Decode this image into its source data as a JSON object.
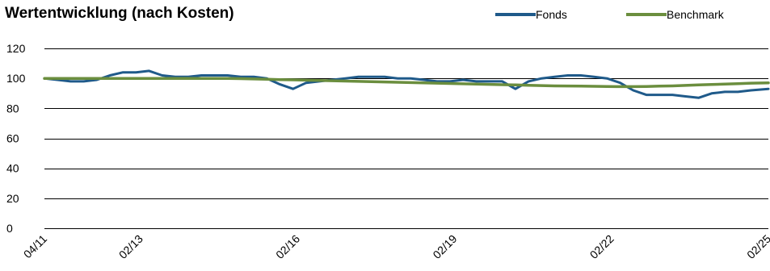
{
  "chart_data": {
    "type": "line",
    "title": "Wertentwicklung (nach Kosten)",
    "xlabel": "",
    "ylabel": "",
    "ylim": [
      0,
      120
    ],
    "yticks": [
      0,
      20,
      40,
      60,
      80,
      100,
      120
    ],
    "grid": "horizontal",
    "legend_position": "top-right",
    "x_tick_labels": [
      "04/11",
      "02/13",
      "02/16",
      "02/19",
      "02/22",
      "02/25"
    ],
    "x_tick_dates": [
      "2011-04",
      "2013-02",
      "2016-02",
      "2019-02",
      "2022-02",
      "2025-02"
    ],
    "x": [
      "2011-04",
      "2011-07",
      "2011-10",
      "2012-01",
      "2012-04",
      "2012-07",
      "2012-10",
      "2013-01",
      "2013-04",
      "2013-07",
      "2013-10",
      "2014-01",
      "2014-04",
      "2014-07",
      "2014-10",
      "2015-01",
      "2015-04",
      "2015-07",
      "2015-10",
      "2016-01",
      "2016-04",
      "2016-07",
      "2016-10",
      "2017-01",
      "2017-04",
      "2017-07",
      "2017-10",
      "2018-01",
      "2018-04",
      "2018-07",
      "2018-10",
      "2019-01",
      "2019-04",
      "2019-07",
      "2019-10",
      "2020-01",
      "2020-04",
      "2020-07",
      "2020-10",
      "2021-01",
      "2021-04",
      "2021-07",
      "2021-10",
      "2022-01",
      "2022-04",
      "2022-07",
      "2022-10",
      "2023-01",
      "2023-04",
      "2023-07",
      "2023-10",
      "2024-01",
      "2024-04",
      "2024-07",
      "2024-10",
      "2025-02"
    ],
    "series": [
      {
        "name": "Fonds",
        "color": "#1f5a8a",
        "values": [
          100,
          99,
          98,
          98,
          99,
          102,
          104,
          104,
          105,
          102,
          101,
          101,
          102,
          102,
          102,
          101,
          101,
          100,
          96,
          93,
          97,
          98,
          99,
          100,
          101,
          101,
          101,
          100,
          100,
          99,
          98,
          98,
          99,
          98,
          98,
          98,
          93,
          98,
          100,
          101,
          102,
          102,
          101,
          100,
          97,
          92,
          89,
          89,
          89,
          88,
          87,
          90,
          91,
          91,
          92,
          93
        ]
      },
      {
        "name": "Benchmark",
        "color": "#6b8e3e",
        "values": [
          100,
          100,
          100,
          100,
          100,
          100,
          100,
          100,
          100,
          100,
          100,
          100,
          100,
          100,
          100,
          99.8,
          99.6,
          99.4,
          99.2,
          99,
          98.8,
          98.6,
          98.4,
          98.2,
          98,
          97.8,
          97.6,
          97.4,
          97.2,
          97,
          96.8,
          96.6,
          96.4,
          96.2,
          96,
          95.8,
          95.6,
          95.4,
          95.2,
          95,
          94.9,
          94.8,
          94.7,
          94.6,
          94.5,
          94.5,
          94.6,
          94.8,
          95,
          95.3,
          95.6,
          95.9,
          96.2,
          96.5,
          96.8,
          97
        ]
      }
    ]
  }
}
